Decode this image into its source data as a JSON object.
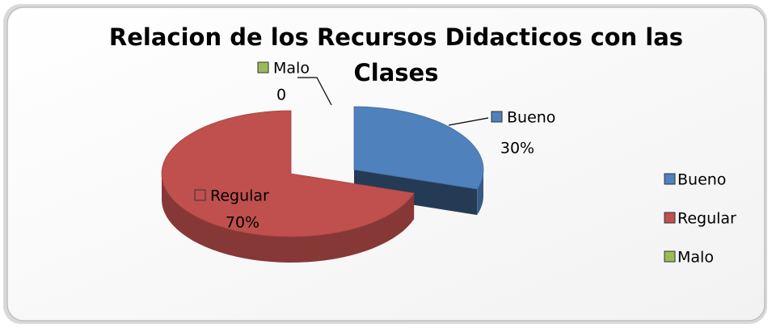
{
  "chart_data": {
    "type": "pie",
    "title": "Relacion de los Recursos Didacticos con las Clases",
    "categories": [
      "Bueno",
      "Regular",
      "Malo"
    ],
    "values": [
      30,
      70,
      0
    ],
    "value_labels": [
      "30%",
      "70%",
      "0"
    ],
    "colors": [
      "#4f81bd",
      "#c0504d",
      "#9bbb59"
    ],
    "legend": "right"
  }
}
